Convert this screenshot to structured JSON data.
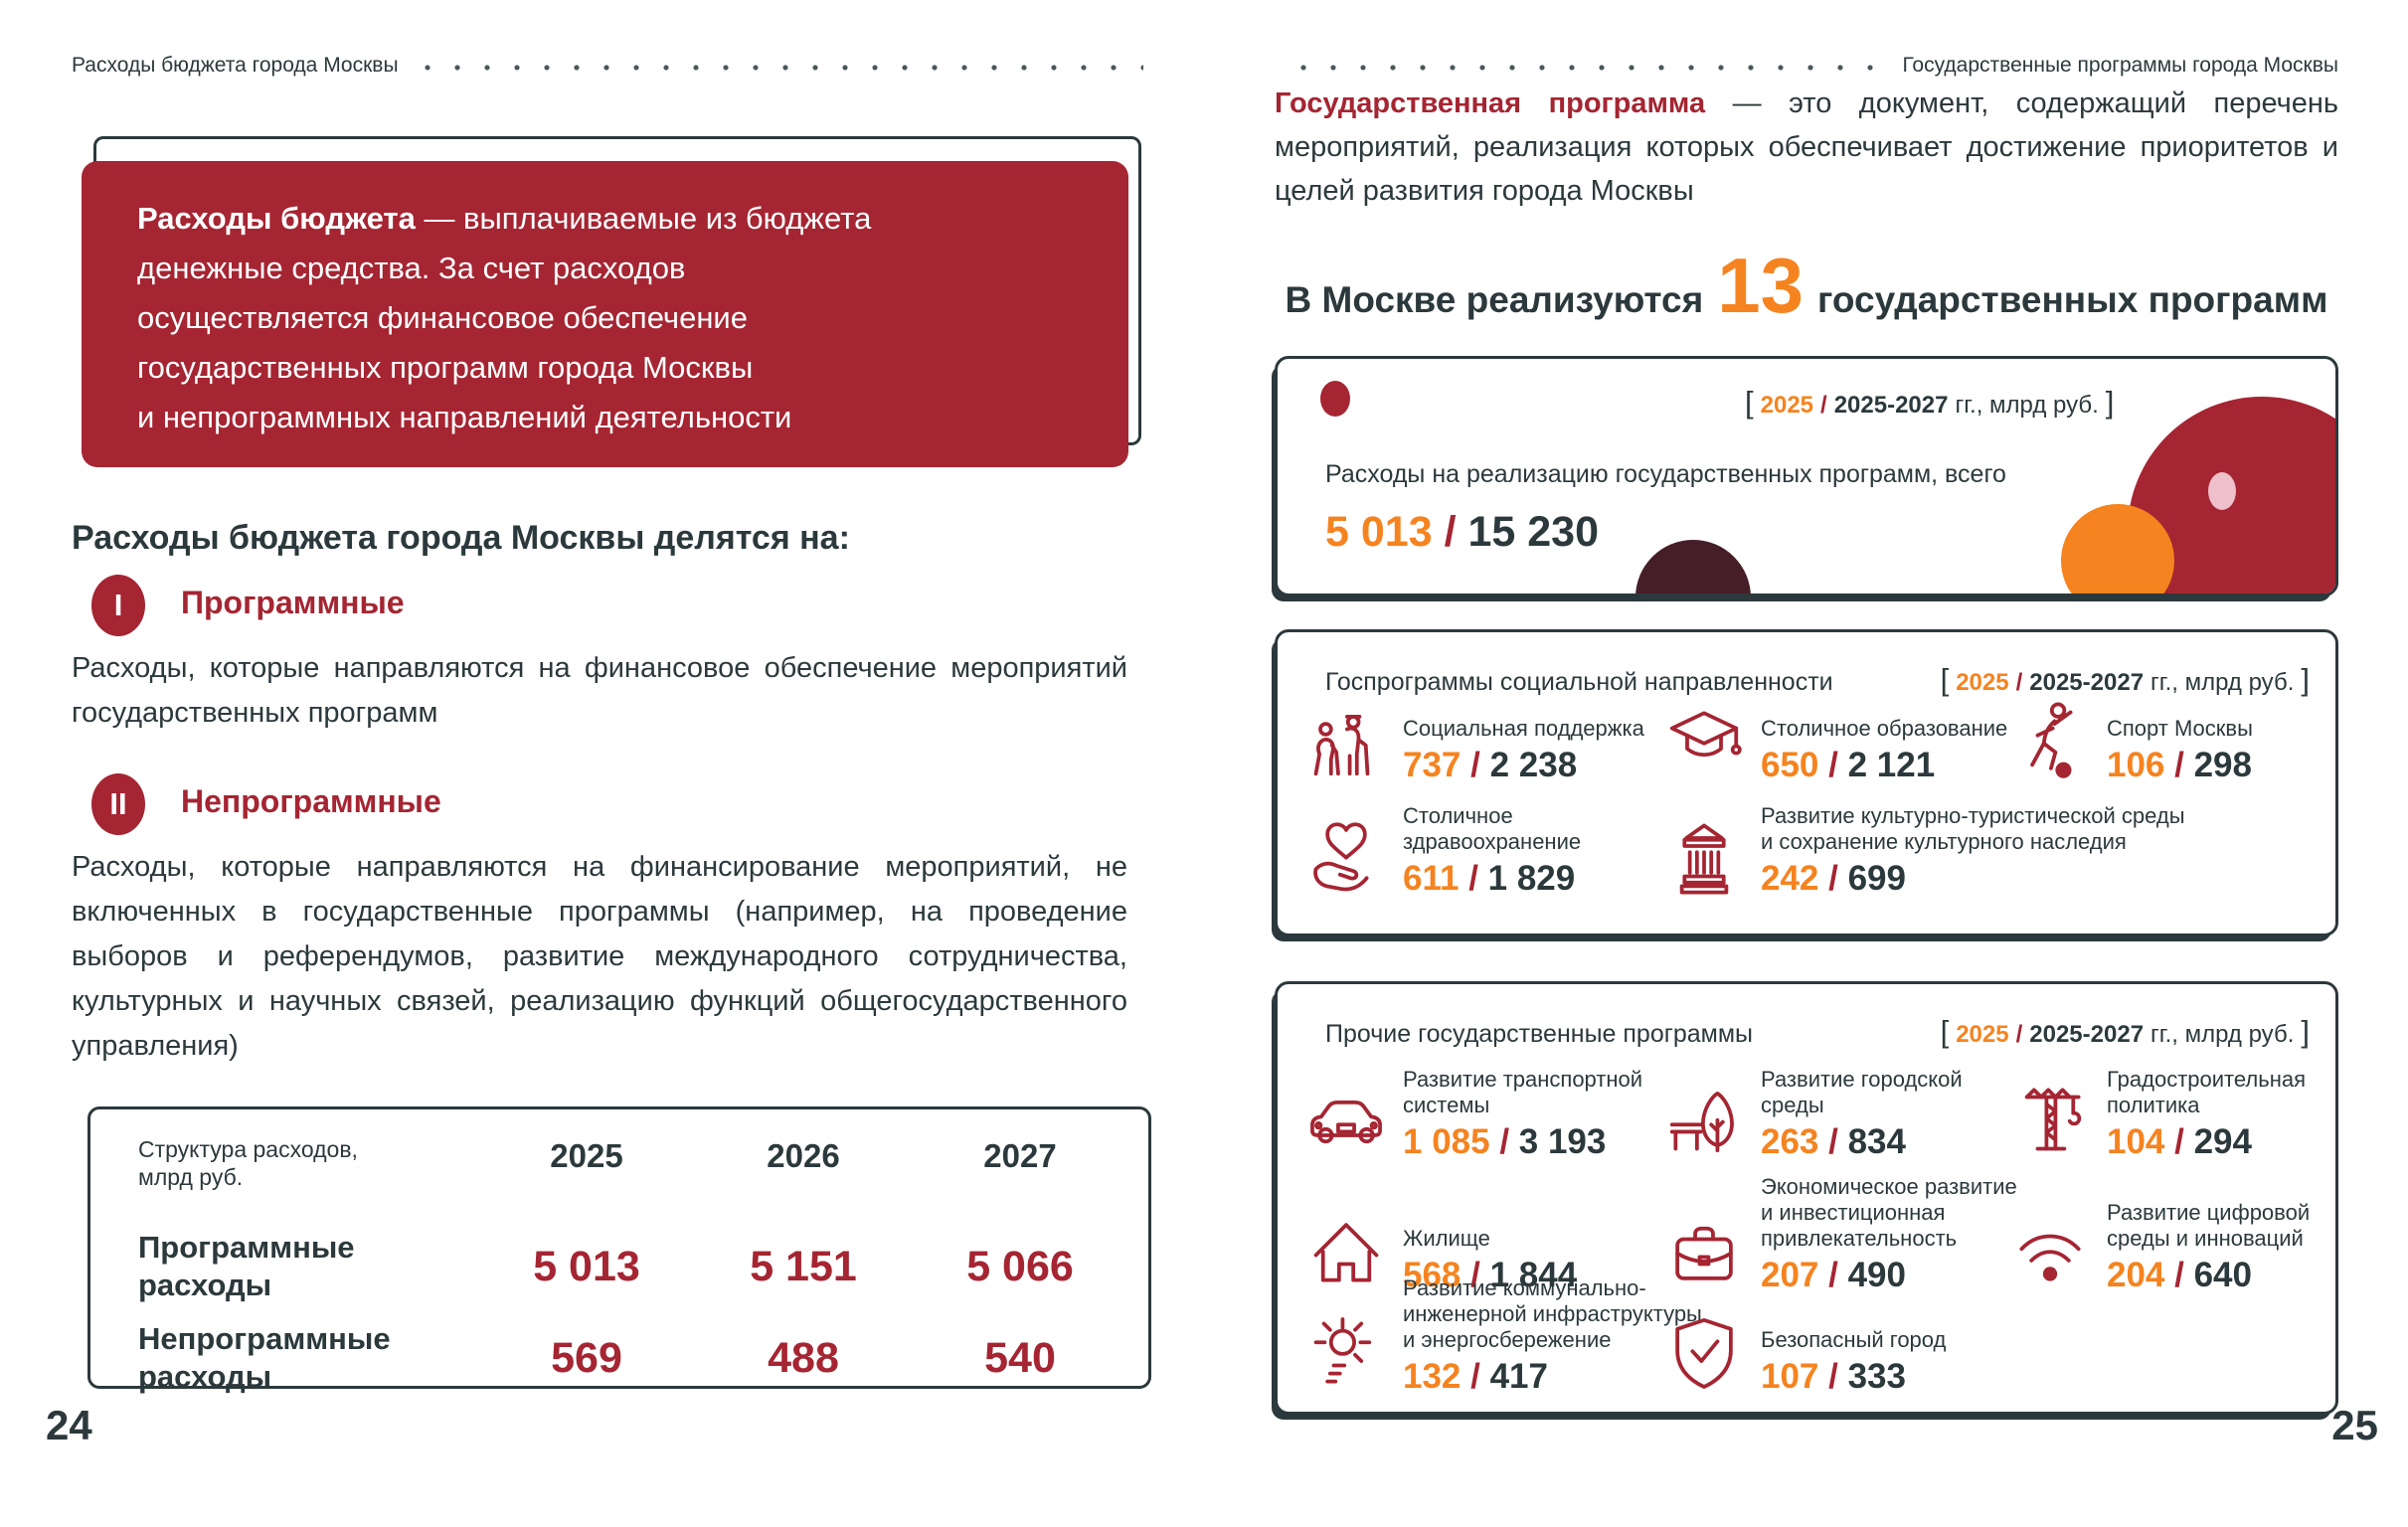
{
  "colors": {
    "accent_red": "#a52532",
    "accent_orange": "#f5831f",
    "text_dark": "#2c393c",
    "maroon": "#451e28",
    "pink": "#edc0cb"
  },
  "page_left": {
    "header": "Расходы бюджета города Москвы",
    "page_number": "24",
    "callout": {
      "lead": "Расходы бюджета",
      "text": " — выплачиваемые из бюджета\nденежные средства. За счет расходов\nосуществляется финансовое обеспечение\nгосударственных программ города Москвы\nи непрограммных направлений деятельности"
    },
    "split_heading": "Расходы бюджета города Москвы делятся на:",
    "items": [
      {
        "numeral": "I",
        "title": "Программные",
        "description": "Расходы, которые направляются на финансовое обеспечение мероприятий государственных программ"
      },
      {
        "numeral": "II",
        "title": "Непрограммные",
        "description": "Расходы, которые направляются на финансирование мероприятий, не включенных в государственные программы (например, на проведение выборов и референдумов, развитие международного сотрудничества, культурных и научных связей, реализацию функций общегосударственного управления)"
      }
    ],
    "table": {
      "row_header": "Структура расходов,\nмлрд руб.",
      "years": [
        "2025",
        "2026",
        "2027"
      ],
      "rows": [
        {
          "label": "Программные\nрасходы",
          "values": [
            "5 013",
            "5 151",
            "5 066"
          ]
        },
        {
          "label": "Непрограммные\nрасходы",
          "values": [
            "569",
            "488",
            "540"
          ]
        }
      ]
    }
  },
  "page_right": {
    "header": "Государственные программы города Москвы",
    "page_number": "25",
    "intro": {
      "lead": "Государственная программа",
      "text": " — это документ, содержащий перечень мероприятий, реализация которых обеспечивает достижение приоритетов и целей развития города Москвы"
    },
    "headline": {
      "prefix": "В Москве реализуются",
      "count": "13",
      "suffix": "государственных программ"
    },
    "legend": {
      "open": "[",
      "year": "2025",
      "slash": "/",
      "range": "2025-2027",
      "units": "гг., млрд руб.",
      "close": "]"
    },
    "total_card": {
      "label": "Расходы на реализацию государственных программ, всего",
      "value": "5 013",
      "slash": "/",
      "total": "15 230"
    },
    "social_card": {
      "title": "Госпрограммы социальной направленности",
      "items": [
        {
          "icon": "elderly-couple-icon",
          "label": "Социальная поддержка",
          "value": "737",
          "total": "2 238",
          "row": 0,
          "col": 0
        },
        {
          "icon": "graduation-cap-icon",
          "label": "Столичное образование",
          "value": "650",
          "total": "2 121",
          "row": 0,
          "col": 1
        },
        {
          "icon": "sport-figure-icon",
          "label": "Спорт Москвы",
          "value": "106",
          "total": "298",
          "row": 0,
          "col": 2
        },
        {
          "icon": "heart-hand-icon",
          "label": "Столичное\nздравоохранение",
          "value": "611",
          "total": "1 829",
          "row": 1,
          "col": 0
        },
        {
          "icon": "museum-column-icon",
          "label": "Развитие культурно-туристической среды\nи сохранение культурного наследия",
          "value": "242",
          "total": "699",
          "row": 1,
          "col": 1
        }
      ]
    },
    "other_card": {
      "title": "Прочие государственные программы",
      "items": [
        {
          "icon": "car-icon",
          "label": "Развитие транспортной\nсистемы",
          "value": "1 085",
          "total": "3 193",
          "row": 0,
          "col": 0
        },
        {
          "icon": "park-bench-tree-icon",
          "label": "Развитие городской\nсреды",
          "value": "263",
          "total": "834",
          "row": 0,
          "col": 1
        },
        {
          "icon": "construction-crane-icon",
          "label": "Градостроительная\nполитика",
          "value": "104",
          "total": "294",
          "row": 0,
          "col": 2
        },
        {
          "icon": "house-icon",
          "label": "Жилище",
          "value": "568",
          "total": "1 844",
          "row": 1,
          "col": 0
        },
        {
          "icon": "briefcase-icon",
          "label": "Экономическое развитие\nи инвестиционная\nпривлекательность",
          "value": "207",
          "total": "490",
          "row": 1,
          "col": 1
        },
        {
          "icon": "wifi-icon",
          "label": "Развитие цифровой\nсреды и инноваций",
          "value": "204",
          "total": "640",
          "row": 1,
          "col": 2
        },
        {
          "icon": "sun-energy-icon",
          "label": "Развитие коммунально-\nинженерной инфраструктуры\nи энергосбережение",
          "value": "132",
          "total": "417",
          "row": 2,
          "col": 0
        },
        {
          "icon": "shield-check-icon",
          "label": "Безопасный город",
          "value": "107",
          "total": "333",
          "row": 2,
          "col": 1
        }
      ]
    }
  }
}
